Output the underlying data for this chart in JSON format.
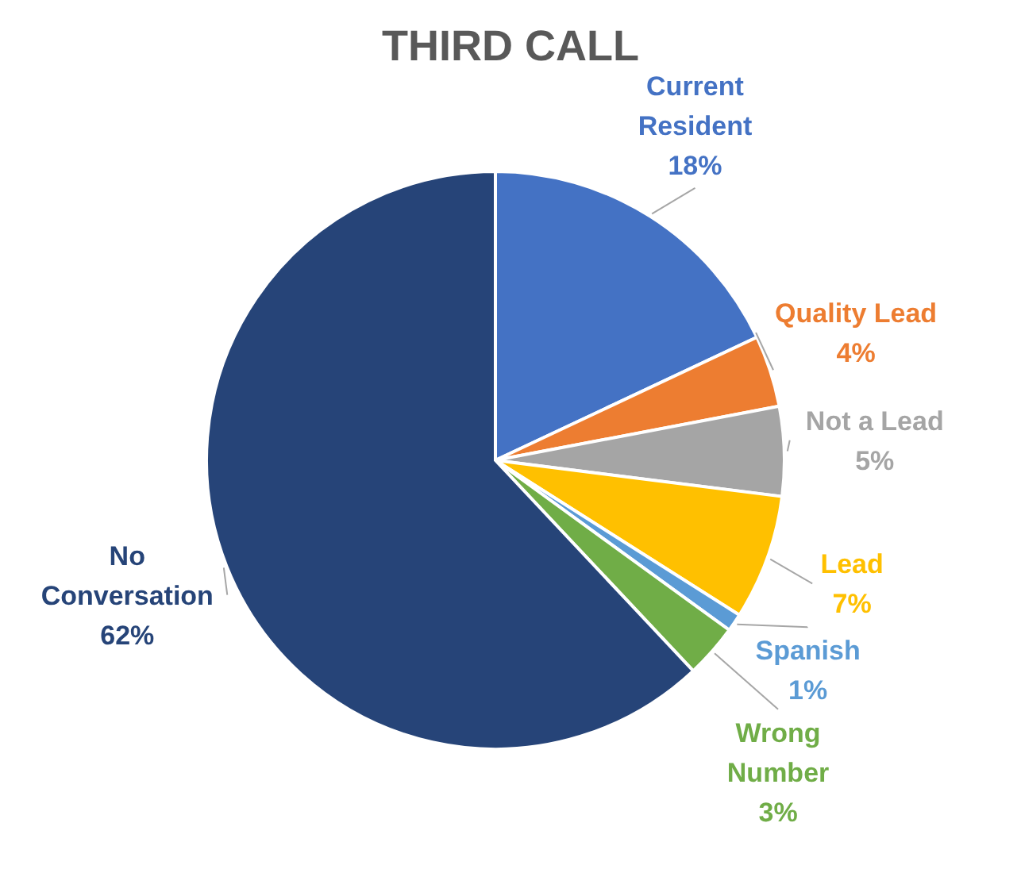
{
  "chart_data": {
    "type": "pie",
    "title": "THIRD CALL",
    "categories": [
      "Current Resident",
      "Quality Lead",
      "Not a Lead",
      "Lead",
      "Spanish",
      "Wrong Number",
      "No Conversation"
    ],
    "values": [
      18,
      4,
      5,
      7,
      1,
      3,
      62
    ],
    "colors": [
      "#4472c4",
      "#ed7d31",
      "#a5a5a5",
      "#ffc000",
      "#5b9bd5",
      "#70ad47",
      "#264478"
    ],
    "value_labels": [
      "18%",
      "4%",
      "5%",
      "7%",
      "1%",
      "3%",
      "62%"
    ],
    "legend": false
  }
}
